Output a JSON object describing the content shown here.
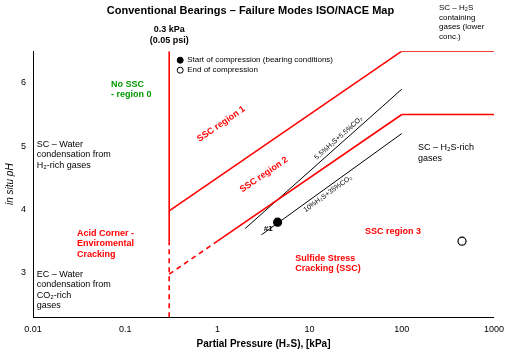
{
  "chart_data": {
    "type": "scatter",
    "title": "Conventional Bearings – Failure Modes ISO/NACE Map",
    "x_label": "Partial Pressure (H₂S), [kPa]",
    "y_label": "in situ pH",
    "log": "x",
    "grid": false,
    "legend": "top",
    "xlim": [
      0.01,
      1000
    ],
    "xticks": [
      0.01,
      0.1,
      1,
      10,
      100,
      1000
    ],
    "ylim": [
      2.3,
      6.5
    ],
    "yticks": [
      3,
      4,
      5,
      6
    ],
    "threshold": {
      "value": 0.3,
      "label": "0.3 kPa",
      "note": "(0.05 psi)"
    },
    "series": [
      {
        "name": "Start of compression (bearing conditions)",
        "type": "scatter",
        "marker": "filled_circle",
        "color": "#000000",
        "x": [
          4.5
        ],
        "values": [
          3.8
        ],
        "point_labels": [
          "#1"
        ]
      },
      {
        "name": "End of compression",
        "type": "scatter",
        "marker": "open_circle",
        "color": "#000000",
        "x": [
          450
        ],
        "values": [
          3.5
        ]
      }
    ],
    "boundaries": [
      {
        "x": [
          0.3,
          0.3
        ],
        "values": [
          3.5,
          6.5
        ],
        "color": "#ff0000",
        "line_style": "solid"
      },
      {
        "x": [
          0.3,
          0.3
        ],
        "values": [
          2.3,
          3.5
        ],
        "color": "#ff0000",
        "line_style": "dashed"
      },
      {
        "x": [
          0.3,
          100
        ],
        "values": [
          3.98,
          6.5
        ],
        "color": "#ff0000",
        "line_style": "solid"
      },
      {
        "x": [
          1,
          100
        ],
        "values": [
          3.5,
          5.5
        ],
        "color": "#ff0000",
        "line_style": "solid"
      },
      {
        "x": [
          0.3,
          1
        ],
        "values": [
          2.98,
          3.5
        ],
        "color": "#ff0000",
        "line_style": "dashed"
      },
      {
        "x": [
          100,
          1000
        ],
        "values": [
          5.5,
          5.5
        ],
        "color": "#ff0000",
        "line_style": "solid"
      },
      {
        "x": [
          100,
          1000
        ],
        "values": [
          6.5,
          6.5
        ],
        "color": "#ff0000",
        "line_style": "solid"
      }
    ],
    "composition_lines": [
      {
        "label": "5.5%H₂S+5.5%CO₂",
        "x": [
          2,
          100
        ],
        "values": [
          3.7,
          5.9
        ],
        "color": "#000000",
        "line_style": "solid"
      },
      {
        "label": "10%H₂S+35%CO₂",
        "x": [
          3,
          100
        ],
        "values": [
          3.6,
          5.2
        ],
        "color": "#000000",
        "line_style": "solid"
      }
    ],
    "annotations": [
      {
        "lines": [
          "No SSC",
          "- region 0"
        ],
        "color": "#009900"
      },
      {
        "lines": [
          "SSC region 1"
        ],
        "color": "#ff0000"
      },
      {
        "lines": [
          "SSC region 2"
        ],
        "color": "#ff0000"
      },
      {
        "lines": [
          "SSC region 3"
        ],
        "color": "#ff0000"
      },
      {
        "lines": [
          "Acid Corner -",
          "Enviromental",
          "Cracking"
        ],
        "color": "#ff0000"
      },
      {
        "lines": [
          "Sulfide Stress",
          "Cracking (SSC)"
        ],
        "color": "#ff0000"
      },
      {
        "lines": [
          "SC – Water",
          "condensation from",
          "H₂-rich gases"
        ],
        "color": "#000000"
      },
      {
        "lines": [
          "EC – Water",
          "condensation from",
          "CO₂-rich",
          "gases"
        ],
        "color": "#000000"
      },
      {
        "lines": [
          "SC – H₂S",
          "containing",
          "gases (lower",
          "conc.)"
        ],
        "color": "#000000"
      },
      {
        "lines": [
          "SC – H₂S-rich",
          "gases"
        ],
        "color": "#000000"
      }
    ]
  }
}
